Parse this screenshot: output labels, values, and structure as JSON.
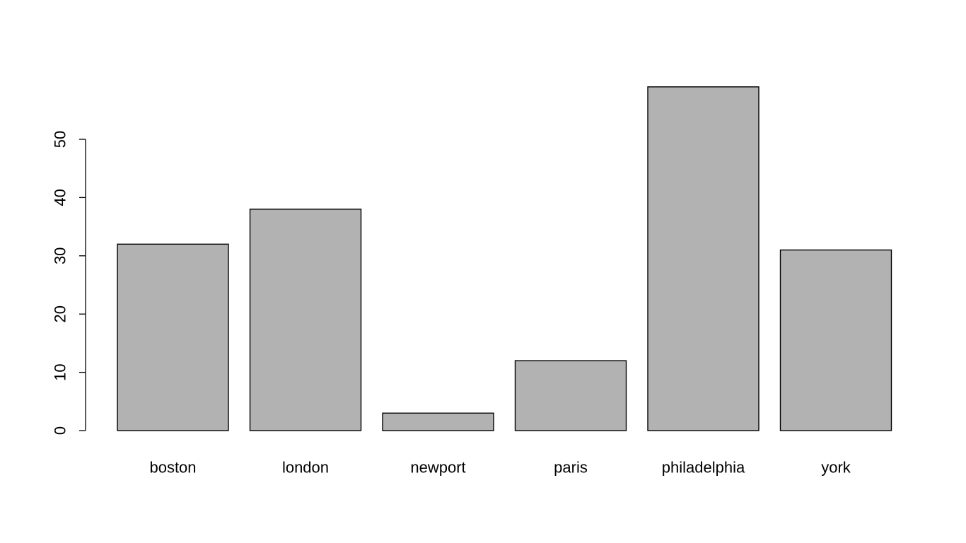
{
  "chart_data": {
    "type": "bar",
    "title": "",
    "xlabel": "",
    "ylabel": "",
    "categories": [
      "boston",
      "london",
      "newport",
      "paris",
      "philadelphia",
      "york"
    ],
    "values": [
      32,
      38,
      3,
      12,
      59,
      31
    ],
    "yticks": [
      0,
      10,
      20,
      30,
      40,
      50
    ],
    "ylim": [
      0,
      59
    ],
    "grid": false,
    "legend": "none",
    "bar_color": "#b2b2b2",
    "bar_border_color": "#000000"
  }
}
